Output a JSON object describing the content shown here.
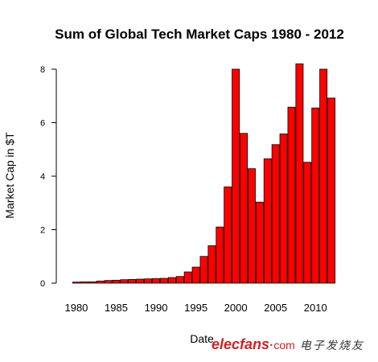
{
  "chart_data": {
    "type": "bar",
    "title": "Sum of Global Tech Market Caps 1980 - 2012",
    "xlabel": "Date",
    "ylabel": "Market Cap in $T",
    "ylim": [
      0,
      8.2
    ],
    "yticks": [
      "0",
      "2",
      "4",
      "6",
      "8"
    ],
    "xtick_labels": [
      "1980",
      "1985",
      "1990",
      "1995",
      "2000",
      "2005",
      "2010"
    ],
    "categories": [
      "1980",
      "1981",
      "1982",
      "1983",
      "1984",
      "1985",
      "1986",
      "1987",
      "1988",
      "1989",
      "1990",
      "1991",
      "1992",
      "1993",
      "1994",
      "1995",
      "1996",
      "1997",
      "1998",
      "1999",
      "2000",
      "2001",
      "2002",
      "2003",
      "2004",
      "2005",
      "2006",
      "2007",
      "2008",
      "2009",
      "2010",
      "2011",
      "2012"
    ],
    "values": [
      0.04,
      0.05,
      0.05,
      0.08,
      0.1,
      0.11,
      0.13,
      0.14,
      0.15,
      0.16,
      0.17,
      0.18,
      0.21,
      0.25,
      0.42,
      0.6,
      1.0,
      1.4,
      2.1,
      3.6,
      8.0,
      5.6,
      4.28,
      3.03,
      4.65,
      5.18,
      5.58,
      6.58,
      8.2,
      4.52,
      6.55,
      8.0,
      6.92
    ],
    "bar_color": "#ff0000",
    "grid": false
  },
  "watermark": {
    "brand": "elecfans",
    "dot": "·",
    "domain": "com",
    "chinese": "电子发烧友"
  }
}
